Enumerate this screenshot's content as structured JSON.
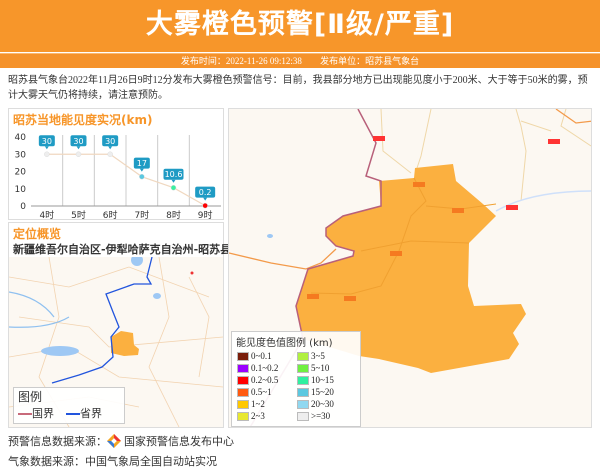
{
  "header": {
    "title": "大雾橙色预警[Ⅱ级/严重]",
    "publish_time_label": "发布时间：2022-11-26 09:12:38",
    "publisher_label": "发布单位：昭苏县气象台"
  },
  "description": "昭苏县气象台2022年11月26日9时12分发布大雾橙色预警信号：目前，我县部分地方已出现能见度小于200米、大于等于50米的雾，预计大雾天气仍将持续，请注意预防。",
  "colors": {
    "header": "#f7962a",
    "warning_area": "#fbb040",
    "province_border": "#2255dd",
    "national_border": "#c86a7a"
  },
  "chart_data": {
    "type": "line",
    "title": "昭苏当地能见度实况(km)",
    "categories": [
      "4时",
      "5时",
      "6时",
      "7时",
      "8时",
      "9时"
    ],
    "values": [
      30,
      30,
      30,
      17,
      10.6,
      0.2
    ],
    "point_colors": [
      "#eeeeee",
      "#eeeeee",
      "#eeeeee",
      "#5bc8e0",
      "#3af0a0",
      "#ff0000"
    ],
    "yticks": [
      0,
      10,
      20,
      30,
      40
    ],
    "ylim": [
      0,
      40
    ],
    "grid": "vertical"
  },
  "location": {
    "title": "定位概览",
    "region": "新疆维吾尔自治区-伊犁哈萨克自治州-昭苏县",
    "legend_title": "图例",
    "legend_items": [
      {
        "label": "国界",
        "color": "#c86a7a"
      },
      {
        "label": "省界",
        "color": "#2255dd"
      }
    ]
  },
  "map_legend": {
    "title": "能见度色值图例 (km)",
    "items": [
      {
        "label": "0~0.1",
        "color": "#7a1e0a"
      },
      {
        "label": "3~5",
        "color": "#b0f040"
      },
      {
        "label": "0.1~0.2",
        "color": "#9a00ff"
      },
      {
        "label": "5~10",
        "color": "#70f040"
      },
      {
        "label": "0.2~0.5",
        "color": "#ff0000"
      },
      {
        "label": "10~15",
        "color": "#30f0a0"
      },
      {
        "label": "0.5~1",
        "color": "#ff5a10"
      },
      {
        "label": "15~20",
        "color": "#5bc8e0"
      },
      {
        "label": "1~2",
        "color": "#ffc800"
      },
      {
        "label": "20~30",
        "color": "#90d8f0"
      },
      {
        "label": "2~3",
        "color": "#e8e830"
      },
      {
        "label": ">=30",
        "color": "#eeeeee"
      }
    ]
  },
  "footer": {
    "warning_source": "预警信息数据来源：",
    "warning_source_name": "国家预警信息发布中心",
    "weather_source": "气象数据来源：中国气象局全国自动站实况"
  }
}
